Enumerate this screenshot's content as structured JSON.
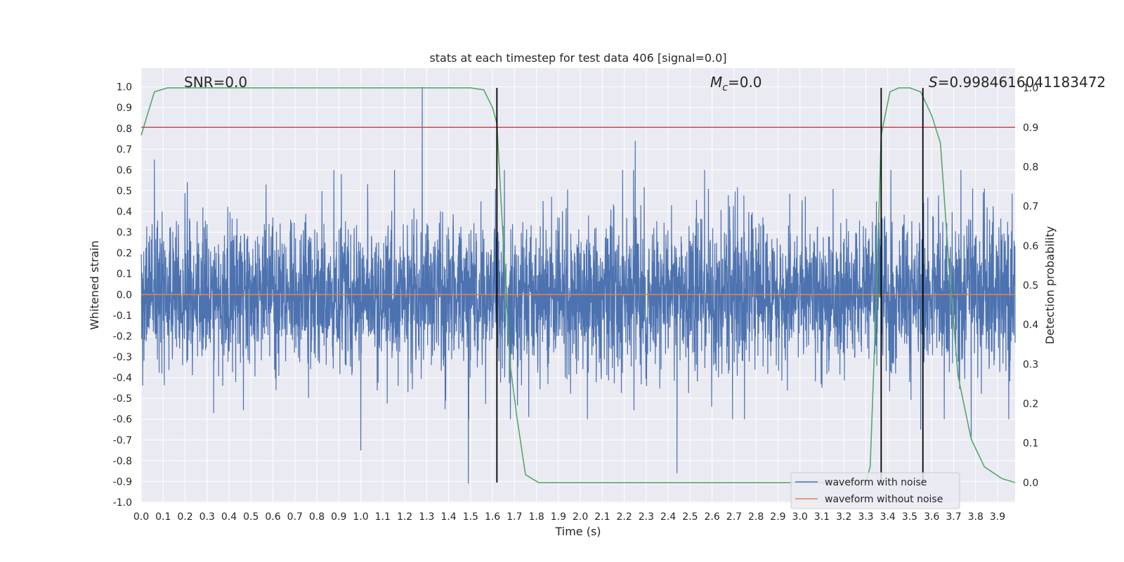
{
  "chart_data": {
    "type": "line",
    "title": "stats at each timestep for test data 406 [signal=0.0]",
    "xlabel": "Time (s)",
    "ylabel": "Whitened strain",
    "y2label": "Detection probability",
    "xlim": [
      0.0,
      3.98
    ],
    "ylim": [
      -1.0,
      1.09
    ],
    "y2lim": [
      -0.05,
      1.05
    ],
    "x_ticks": [
      "0.0",
      "0.1",
      "0.2",
      "0.3",
      "0.4",
      "0.5",
      "0.6",
      "0.7",
      "0.8",
      "0.9",
      "1.0",
      "1.1",
      "1.2",
      "1.3",
      "1.4",
      "1.5",
      "1.6",
      "1.7",
      "1.8",
      "1.9",
      "2.0",
      "2.1",
      "2.2",
      "2.3",
      "2.4",
      "2.5",
      "2.6",
      "2.7",
      "2.8",
      "2.9",
      "3.0",
      "3.1",
      "3.2",
      "3.3",
      "3.4",
      "3.5",
      "3.6",
      "3.7",
      "3.8",
      "3.9"
    ],
    "y_ticks": [
      "-1.0",
      "-0.9",
      "-0.8",
      "-0.7",
      "-0.6",
      "-0.5",
      "-0.4",
      "-0.3",
      "-0.2",
      "-0.1",
      "0.0",
      "0.1",
      "0.2",
      "0.3",
      "0.4",
      "0.5",
      "0.6",
      "0.7",
      "0.8",
      "0.9",
      "1.0"
    ],
    "y2_ticks": [
      "0.0",
      "0.1",
      "0.2",
      "0.3",
      "0.4",
      "0.5",
      "0.6",
      "0.7",
      "0.8",
      "0.9",
      "1.0"
    ],
    "grid": true,
    "legend_position": "lower-right",
    "annotations": {
      "snr": "SNR=0.0",
      "mc_symbol": "M",
      "mc_sub": "c",
      "mc_value": "=0.0",
      "s_symbol": "S",
      "s_value": "=0.9984616041183472"
    },
    "series": [
      {
        "name": "waveform with noise",
        "color": "#4c72b0",
        "axis": "left",
        "description_range": [
          -0.91,
          1.0
        ],
        "peaks": [
          {
            "x": 1.28,
            "y": 1.0
          },
          {
            "x": 1.49,
            "y": -0.91
          },
          {
            "x": 2.44,
            "y": -0.86
          },
          {
            "x": 0.06,
            "y": 0.65
          },
          {
            "x": 2.25,
            "y": 0.74
          },
          {
            "x": 0.33,
            "y": -0.57
          },
          {
            "x": 1.0,
            "y": -0.75
          },
          {
            "x": 3.55,
            "y": -0.65
          },
          {
            "x": 3.78,
            "y": -0.7
          }
        ]
      },
      {
        "name": "waveform without noise",
        "color": "#dd8452",
        "axis": "left",
        "x": [
          0.0,
          3.98
        ],
        "values": [
          0.0,
          0.0
        ]
      },
      {
        "name": "",
        "color": "#55a868",
        "axis": "right",
        "x": [
          0.0,
          0.06,
          0.12,
          0.2,
          0.5,
          1.0,
          1.5,
          1.56,
          1.6,
          1.62,
          1.65,
          1.68,
          1.71,
          1.75,
          1.81,
          1.87,
          2.0,
          3.0,
          3.3,
          3.32,
          3.35,
          3.37,
          3.41,
          3.45,
          3.5,
          3.55,
          3.6,
          3.64,
          3.68,
          3.72,
          3.78,
          3.84,
          3.92,
          3.98
        ],
        "values": [
          0.88,
          0.99,
          1.0,
          1.0,
          1.0,
          1.0,
          1.0,
          0.995,
          0.95,
          0.91,
          0.6,
          0.3,
          0.17,
          0.02,
          0.0,
          0.0,
          0.0,
          0.0,
          0.0,
          0.04,
          0.5,
          0.88,
          0.99,
          1.0,
          1.0,
          0.99,
          0.93,
          0.86,
          0.54,
          0.27,
          0.11,
          0.04,
          0.01,
          0.0
        ]
      },
      {
        "name": "",
        "color": "#c44e52",
        "axis": "right",
        "x": [
          0.0,
          3.98
        ],
        "values": [
          0.9,
          0.9
        ]
      }
    ],
    "vertical_markers": {
      "color": "#000000",
      "x": [
        1.62,
        3.37,
        3.56
      ],
      "y2_range": [
        0.0,
        1.0
      ]
    }
  }
}
